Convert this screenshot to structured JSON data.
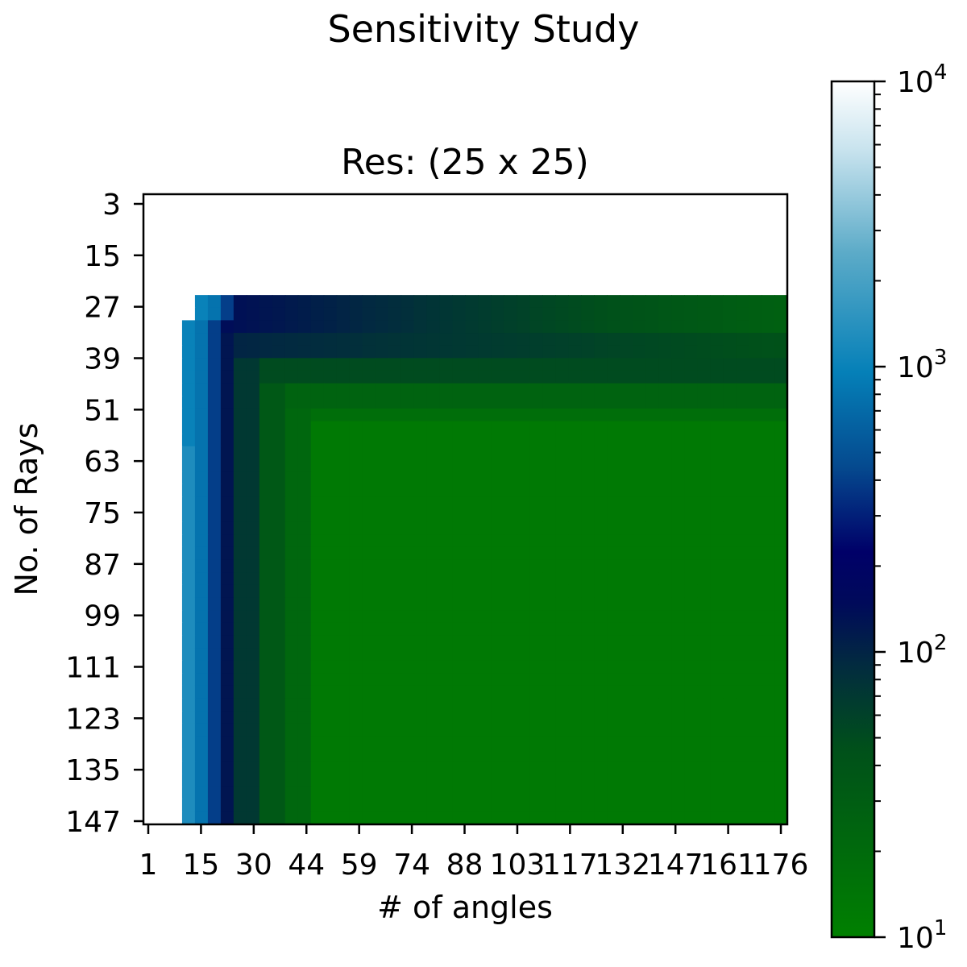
{
  "chart_data": {
    "type": "heatmap",
    "suptitle": "Sensitivity Study",
    "title": "Res: (25 x 25)",
    "xlabel": "# of angles",
    "ylabel": "No. of Rays",
    "x_tick_labels": [
      "1",
      "15",
      "30",
      "44",
      "59",
      "74",
      "88",
      "103",
      "117",
      "132",
      "147",
      "161",
      "176"
    ],
    "y_tick_labels": [
      "3",
      "15",
      "27",
      "39",
      "51",
      "63",
      "75",
      "87",
      "99",
      "111",
      "123",
      "135",
      "147"
    ],
    "x_range": [
      1,
      180
    ],
    "y_range": [
      3,
      150
    ],
    "colorbar": {
      "scale": "log",
      "min": 10,
      "max": 10000,
      "tick_labels": [
        {
          "base": "10",
          "exp": "1"
        },
        {
          "base": "10",
          "exp": "2"
        },
        {
          "base": "10",
          "exp": "3"
        },
        {
          "base": "10",
          "exp": "4"
        }
      ],
      "colormap_stops": [
        {
          "v": 0.0,
          "color": "#008000"
        },
        {
          "v": 0.22,
          "color": "#00501a"
        },
        {
          "v": 0.32,
          "color": "#022a40"
        },
        {
          "v": 0.39,
          "color": "#000a5a"
        },
        {
          "v": 0.45,
          "color": "#000068"
        },
        {
          "v": 0.55,
          "color": "#054a8f"
        },
        {
          "v": 0.66,
          "color": "#0580b8"
        },
        {
          "v": 0.8,
          "color": "#5cabc8"
        },
        {
          "v": 0.92,
          "color": "#c8e3ee"
        },
        {
          "v": 1.0,
          "color": "#ffffff"
        }
      ]
    },
    "nan_color": "#ffffff",
    "description_of_field": "Error value (log scale) over grid of # of angles (columns) vs No. of rays (rows); blank (NaN) region for small rays/angles, dark blue band near rays 27-50, green plateau ~10 for large values."
  }
}
